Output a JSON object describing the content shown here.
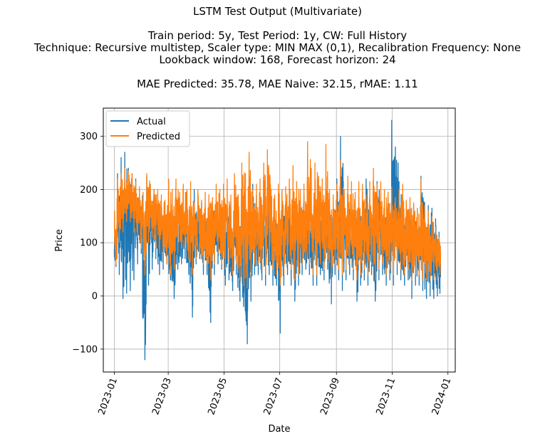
{
  "chart_data": {
    "type": "line",
    "title": "LSTM Test Output (Multivariate)",
    "subtitle_lines": [
      "Train period: 5y, Test Period: 1y, CW: Full History",
      "Technique: Recursive multistep, Scaler type: MIN MAX (0,1), Recalibration Frequency: None",
      "Lookback window: 168, Forecast horizon: 24",
      "MAE Predicted: 35.78, MAE Naive: 32.15, rMAE: 1.11"
    ],
    "xlabel": "Date",
    "ylabel": "Price",
    "x_ticks": [
      "2023-01",
      "2023-03",
      "2023-05",
      "2023-07",
      "2023-09",
      "2023-11",
      "2024-01"
    ],
    "y_ticks": [
      -100,
      0,
      100,
      200,
      300
    ],
    "xlim": [
      "2022-12-20",
      "2024-01-09"
    ],
    "ylim": [
      -143,
      353
    ],
    "grid": true,
    "legend_position": "top-left",
    "series": [
      {
        "name": "Actual",
        "color": "#1f77b4",
        "x": [
          "2023-01-01",
          "2023-01-04",
          "2023-01-08",
          "2023-01-12",
          "2023-01-16",
          "2023-01-20",
          "2023-01-24",
          "2023-01-28",
          "2023-02-01",
          "2023-02-05",
          "2023-02-09",
          "2023-02-13",
          "2023-02-17",
          "2023-02-21",
          "2023-02-25",
          "2023-03-01",
          "2023-03-05",
          "2023-03-09",
          "2023-03-13",
          "2023-03-17",
          "2023-03-21",
          "2023-03-25",
          "2023-03-29",
          "2023-04-02",
          "2023-04-06",
          "2023-04-10",
          "2023-04-14",
          "2023-04-18",
          "2023-04-22",
          "2023-04-26",
          "2023-04-30",
          "2023-05-04",
          "2023-05-08",
          "2023-05-12",
          "2023-05-16",
          "2023-05-20",
          "2023-05-24",
          "2023-05-28",
          "2023-06-01",
          "2023-06-05",
          "2023-06-09",
          "2023-06-13",
          "2023-06-17",
          "2023-06-21",
          "2023-06-25",
          "2023-06-29",
          "2023-07-03",
          "2023-07-07",
          "2023-07-11",
          "2023-07-15",
          "2023-07-19",
          "2023-07-23",
          "2023-07-27",
          "2023-07-31",
          "2023-08-04",
          "2023-08-08",
          "2023-08-12",
          "2023-08-16",
          "2023-08-20",
          "2023-08-24",
          "2023-08-28",
          "2023-09-01",
          "2023-09-05",
          "2023-09-09",
          "2023-09-13",
          "2023-09-17",
          "2023-09-21",
          "2023-09-25",
          "2023-09-29",
          "2023-10-03",
          "2023-10-07",
          "2023-10-11",
          "2023-10-15",
          "2023-10-19",
          "2023-10-23",
          "2023-10-27",
          "2023-10-31",
          "2023-11-04",
          "2023-11-08",
          "2023-11-12",
          "2023-11-16",
          "2023-11-20",
          "2023-11-24",
          "2023-11-28",
          "2023-12-02",
          "2023-12-06",
          "2023-12-10",
          "2023-12-14",
          "2023-12-18",
          "2023-12-22"
        ],
        "max": [
          110,
          230,
          260,
          270,
          240,
          230,
          220,
          200,
          150,
          225,
          200,
          200,
          190,
          170,
          150,
          140,
          150,
          160,
          165,
          165,
          160,
          155,
          200,
          165,
          175,
          165,
          170,
          175,
          180,
          160,
          150,
          170,
          175,
          210,
          190,
          175,
          160,
          180,
          210,
          190,
          170,
          170,
          195,
          185,
          165,
          175,
          195,
          165,
          180,
          175,
          170,
          180,
          190,
          170,
          175,
          190,
          175,
          190,
          185,
          170,
          175,
          220,
          300,
          185,
          180,
          170,
          175,
          185,
          195,
          220,
          180,
          170,
          215,
          180,
          185,
          185,
          330,
          280,
          215,
          185,
          175,
          165,
          170,
          160,
          225,
          175,
          170,
          165,
          145,
          120
        ],
        "min": [
          55,
          40,
          -5,
          5,
          10,
          30,
          60,
          80,
          -120,
          20,
          50,
          70,
          40,
          50,
          60,
          30,
          -5,
          50,
          60,
          70,
          40,
          -40,
          60,
          70,
          40,
          40,
          -50,
          40,
          60,
          50,
          20,
          30,
          10,
          40,
          -10,
          -20,
          -90,
          -10,
          40,
          40,
          30,
          20,
          40,
          20,
          20,
          -70,
          20,
          40,
          20,
          -10,
          20,
          40,
          50,
          40,
          20,
          20,
          40,
          30,
          50,
          -15,
          40,
          30,
          10,
          30,
          40,
          30,
          -10,
          20,
          30,
          20,
          40,
          -10,
          30,
          40,
          20,
          30,
          20,
          40,
          30,
          20,
          30,
          -5,
          20,
          20,
          10,
          -5,
          0,
          -5,
          0,
          5
        ]
      },
      {
        "name": "Predicted",
        "color": "#ff7f0e",
        "x": [
          "2023-01-01",
          "2023-01-04",
          "2023-01-08",
          "2023-01-12",
          "2023-01-16",
          "2023-01-20",
          "2023-01-24",
          "2023-01-28",
          "2023-02-01",
          "2023-02-05",
          "2023-02-09",
          "2023-02-13",
          "2023-02-17",
          "2023-02-21",
          "2023-02-25",
          "2023-03-01",
          "2023-03-05",
          "2023-03-09",
          "2023-03-13",
          "2023-03-17",
          "2023-03-21",
          "2023-03-25",
          "2023-03-29",
          "2023-04-02",
          "2023-04-06",
          "2023-04-10",
          "2023-04-14",
          "2023-04-18",
          "2023-04-22",
          "2023-04-26",
          "2023-04-30",
          "2023-05-04",
          "2023-05-08",
          "2023-05-12",
          "2023-05-16",
          "2023-05-20",
          "2023-05-24",
          "2023-05-28",
          "2023-06-01",
          "2023-06-05",
          "2023-06-09",
          "2023-06-13",
          "2023-06-17",
          "2023-06-21",
          "2023-06-25",
          "2023-06-29",
          "2023-07-03",
          "2023-07-07",
          "2023-07-11",
          "2023-07-15",
          "2023-07-19",
          "2023-07-23",
          "2023-07-27",
          "2023-07-31",
          "2023-08-04",
          "2023-08-08",
          "2023-08-12",
          "2023-08-16",
          "2023-08-20",
          "2023-08-24",
          "2023-08-28",
          "2023-09-01",
          "2023-09-05",
          "2023-09-09",
          "2023-09-13",
          "2023-09-17",
          "2023-09-21",
          "2023-09-25",
          "2023-09-29",
          "2023-10-03",
          "2023-10-07",
          "2023-10-11",
          "2023-10-15",
          "2023-10-19",
          "2023-10-23",
          "2023-10-27",
          "2023-10-31",
          "2023-11-04",
          "2023-11-08",
          "2023-11-12",
          "2023-11-16",
          "2023-11-20",
          "2023-11-24",
          "2023-11-28",
          "2023-12-02",
          "2023-12-06",
          "2023-12-10",
          "2023-12-14",
          "2023-12-18",
          "2023-12-22"
        ],
        "max": [
          160,
          220,
          230,
          240,
          235,
          230,
          215,
          205,
          195,
          230,
          210,
          200,
          200,
          190,
          180,
          220,
          200,
          220,
          195,
          210,
          200,
          215,
          175,
          200,
          180,
          195,
          190,
          185,
          210,
          200,
          210,
          220,
          190,
          230,
          190,
          250,
          230,
          270,
          200,
          210,
          220,
          250,
          275,
          200,
          190,
          210,
          200,
          205,
          220,
          245,
          215,
          200,
          210,
          290,
          240,
          250,
          225,
          220,
          285,
          200,
          190,
          210,
          255,
          200,
          225,
          215,
          195,
          215,
          210,
          190,
          215,
          240,
          210,
          215,
          200,
          195,
          205,
          185,
          200,
          210,
          180,
          185,
          175,
          165,
          220,
          170,
          160,
          150,
          130,
          110
        ],
        "min": [
          60,
          100,
          120,
          140,
          140,
          120,
          110,
          90,
          40,
          100,
          110,
          90,
          80,
          80,
          60,
          40,
          50,
          80,
          90,
          90,
          70,
          40,
          70,
          80,
          60,
          60,
          30,
          60,
          80,
          60,
          50,
          60,
          40,
          60,
          30,
          20,
          15,
          40,
          60,
          60,
          50,
          40,
          60,
          50,
          40,
          20,
          40,
          60,
          50,
          30,
          40,
          60,
          70,
          60,
          40,
          40,
          60,
          50,
          70,
          40,
          60,
          50,
          40,
          50,
          60,
          50,
          30,
          40,
          50,
          40,
          60,
          30,
          50,
          60,
          40,
          50,
          40,
          60,
          50,
          40,
          50,
          30,
          40,
          40,
          30,
          30,
          30,
          30,
          30,
          40
        ]
      }
    ]
  }
}
